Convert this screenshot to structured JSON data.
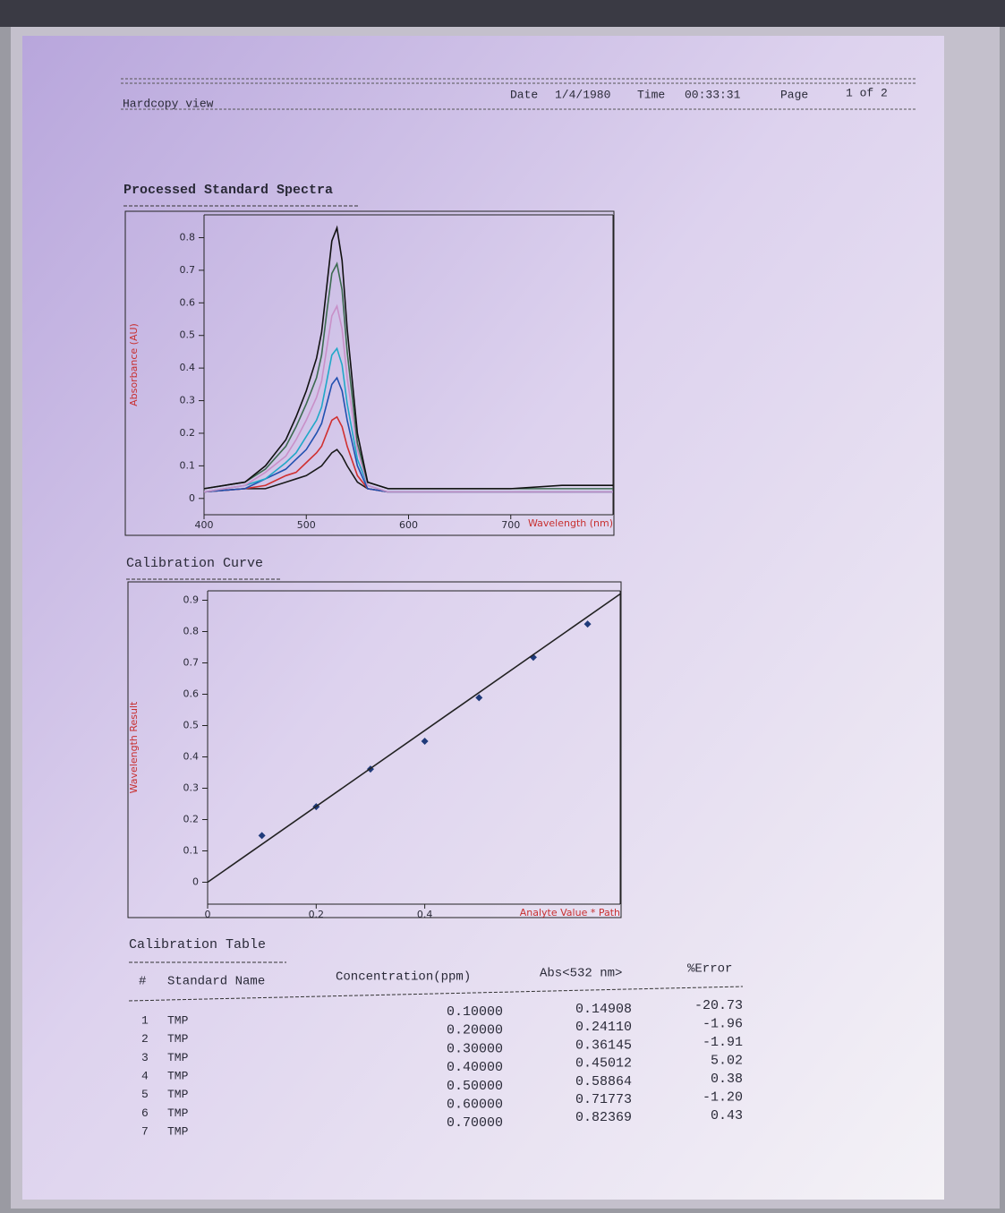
{
  "header": {
    "left": "Hardcopy view",
    "date_label": "Date",
    "date": "1/4/1980",
    "time_label": "Time",
    "time": "00:33:31",
    "page_label": "Page",
    "page": "1 of 2"
  },
  "chart_data": [
    {
      "type": "line",
      "title": "Processed Standard Spectra",
      "x_label": "Wavelength (nm)",
      "y_label": "Absorbance (AU)",
      "x": [
        400,
        440,
        460,
        480,
        490,
        500,
        510,
        515,
        520,
        525,
        530,
        535,
        540,
        550,
        560,
        580,
        600,
        650,
        700,
        750,
        800
      ],
      "series": [
        {
          "color": "#1a1a1a",
          "values": [
            0.02,
            0.03,
            0.03,
            0.05,
            0.06,
            0.07,
            0.09,
            0.1,
            0.12,
            0.14,
            0.15,
            0.13,
            0.1,
            0.05,
            0.03,
            0.02,
            0.02,
            0.02,
            0.02,
            0.02,
            0.02
          ]
        },
        {
          "color": "#d03030",
          "values": [
            0.02,
            0.03,
            0.04,
            0.07,
            0.08,
            0.11,
            0.14,
            0.16,
            0.2,
            0.24,
            0.25,
            0.22,
            0.16,
            0.07,
            0.03,
            0.02,
            0.02,
            0.02,
            0.02,
            0.02,
            0.02
          ]
        },
        {
          "color": "#2050b0",
          "values": [
            0.02,
            0.03,
            0.06,
            0.09,
            0.12,
            0.15,
            0.2,
            0.23,
            0.29,
            0.35,
            0.37,
            0.33,
            0.24,
            0.1,
            0.03,
            0.02,
            0.02,
            0.02,
            0.02,
            0.02,
            0.02
          ]
        },
        {
          "color": "#20a8c8",
          "values": [
            0.02,
            0.04,
            0.06,
            0.11,
            0.14,
            0.19,
            0.24,
            0.28,
            0.36,
            0.44,
            0.46,
            0.41,
            0.29,
            0.12,
            0.04,
            0.02,
            0.02,
            0.02,
            0.02,
            0.02,
            0.02
          ]
        },
        {
          "color": "#c890c8",
          "values": [
            0.02,
            0.04,
            0.08,
            0.13,
            0.18,
            0.24,
            0.31,
            0.36,
            0.46,
            0.56,
            0.59,
            0.52,
            0.37,
            0.15,
            0.04,
            0.02,
            0.02,
            0.02,
            0.02,
            0.02,
            0.02
          ]
        },
        {
          "color": "#3c6a50",
          "values": [
            0.03,
            0.05,
            0.09,
            0.16,
            0.22,
            0.29,
            0.37,
            0.44,
            0.57,
            0.69,
            0.72,
            0.64,
            0.45,
            0.17,
            0.05,
            0.03,
            0.03,
            0.03,
            0.03,
            0.03,
            0.03
          ]
        },
        {
          "color": "#111111",
          "values": [
            0.03,
            0.05,
            0.1,
            0.18,
            0.25,
            0.33,
            0.43,
            0.51,
            0.65,
            0.79,
            0.83,
            0.73,
            0.52,
            0.2,
            0.05,
            0.03,
            0.03,
            0.03,
            0.03,
            0.04,
            0.04
          ]
        }
      ],
      "xlim": [
        400,
        800
      ],
      "ylim": [
        -0.05,
        0.87
      ],
      "xticks": [
        400,
        500,
        600,
        700
      ],
      "yticks": [
        0,
        0.1,
        0.2,
        0.3,
        0.4,
        0.5,
        0.6,
        0.7,
        0.8
      ]
    },
    {
      "type": "scatter",
      "title": "Calibration Curve",
      "x_label": "Analyte Value * Path",
      "y_label": "Wavelength Result",
      "series": [
        {
          "mode": "markers",
          "color": "#1f3a7a",
          "x": [
            0.1,
            0.2,
            0.3,
            0.4,
            0.5,
            0.6,
            0.7
          ],
          "values": [
            0.149,
            0.241,
            0.361,
            0.45,
            0.589,
            0.718,
            0.824
          ]
        },
        {
          "mode": "line",
          "color": "#222222",
          "x": [
            0,
            0.76
          ],
          "values": [
            0,
            0.92
          ]
        }
      ],
      "xlim": [
        0,
        0.76
      ],
      "ylim": [
        -0.07,
        0.93
      ],
      "xticks": [
        0,
        0.2,
        0.4
      ],
      "yticks": [
        0,
        0.1,
        0.2,
        0.3,
        0.4,
        0.5,
        0.6,
        0.7,
        0.8,
        0.9
      ]
    }
  ],
  "table": {
    "title": "Calibration Table",
    "columns": [
      "#",
      "Standard Name",
      "Concentration(ppm)",
      "Abs<532 nm>",
      "%Error"
    ],
    "rows": [
      [
        "1",
        "TMP",
        "0.10000",
        "0.14908",
        "-20.73"
      ],
      [
        "2",
        "TMP",
        "0.20000",
        "0.24110",
        "-1.96"
      ],
      [
        "3",
        "TMP",
        "0.30000",
        "0.36145",
        "-1.91"
      ],
      [
        "4",
        "TMP",
        "0.40000",
        "0.45012",
        "5.02"
      ],
      [
        "5",
        "TMP",
        "0.50000",
        "0.58864",
        "0.38"
      ],
      [
        "6",
        "TMP",
        "0.60000",
        "0.71773",
        "-1.20"
      ],
      [
        "7",
        "TMP",
        "0.70000",
        "0.82369",
        "0.43"
      ]
    ]
  }
}
